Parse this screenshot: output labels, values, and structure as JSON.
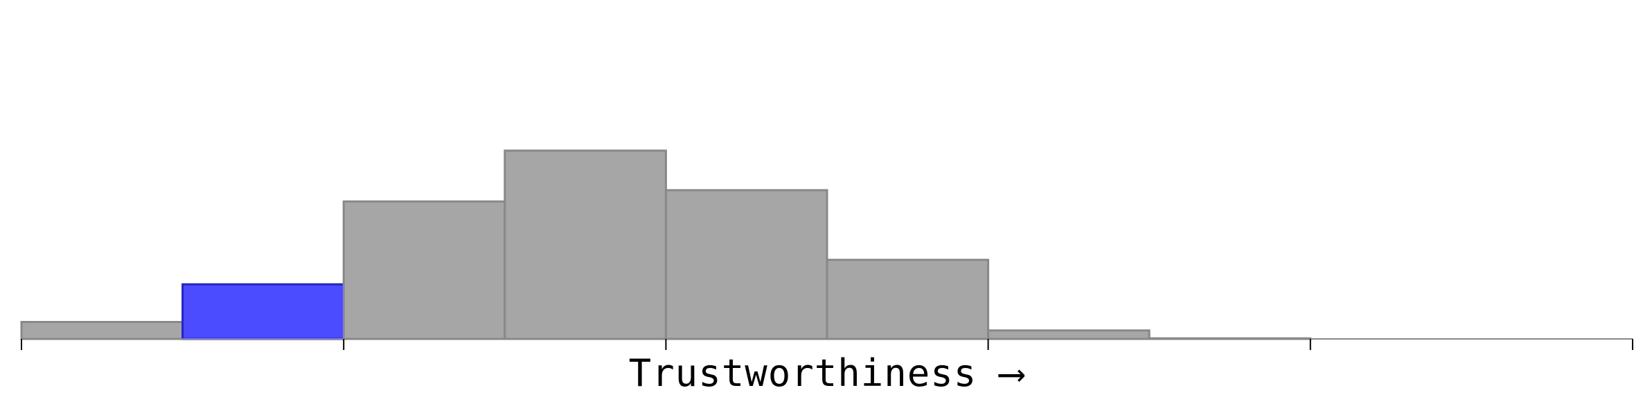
{
  "chart_data": {
    "type": "bar",
    "xlabel": "Trustworthiness  ⟶",
    "bins": 10,
    "values": [
      9,
      29,
      73,
      100,
      79,
      42,
      4.5,
      0.3,
      0,
      0
    ],
    "highlight_index": 1,
    "ylim": [
      0,
      180
    ],
    "ticks_every": 2,
    "colors": {
      "bar_fill": "#a6a6a6",
      "bar_stroke": "#888888",
      "highlight_fill": "#4b4bff",
      "highlight_stroke": "#2222cc",
      "axis": "#000000"
    }
  }
}
